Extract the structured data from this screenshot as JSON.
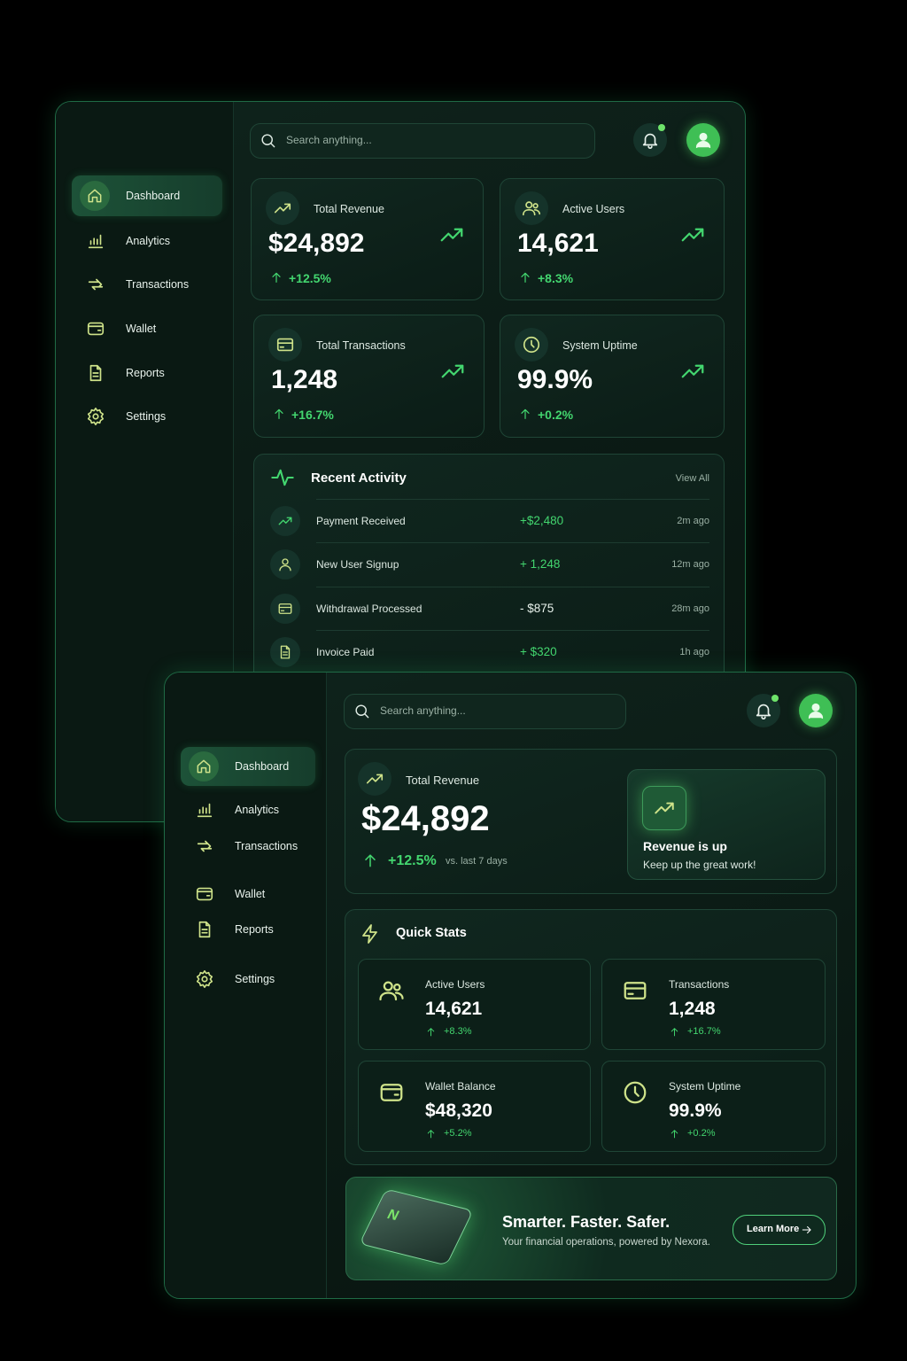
{
  "back": {
    "search": "Search anything...",
    "nav": [
      "Dashboard",
      "Analytics",
      "Transactions",
      "Wallet",
      "Reports",
      "Settings"
    ],
    "stats": [
      {
        "label": "Total Revenue",
        "value": "$24,892",
        "change": "+12.5%"
      },
      {
        "label": "Active Users",
        "value": "14,621",
        "change": "+8.3%"
      },
      {
        "label": "Total Transactions",
        "value": "1,248",
        "change": "+16.7%"
      },
      {
        "label": "System Uptime",
        "value": "99.9%",
        "change": "+0.2%"
      }
    ],
    "activity": {
      "title": "Recent Activity",
      "view_all": "View All",
      "rows": [
        {
          "label": "Payment Received",
          "amount": "+$2,480",
          "time": "2m ago"
        },
        {
          "label": "New User Signup",
          "amount": "+ 1,248",
          "time": "12m ago"
        },
        {
          "label": "Withdrawal Processed",
          "amount": "- $875",
          "time": "28m ago"
        },
        {
          "label": "Invoice Paid",
          "amount": "+ $320",
          "time": "1h ago"
        }
      ]
    }
  },
  "front": {
    "search": "Search anything...",
    "nav": [
      "Dashboard",
      "Analytics",
      "Transactions",
      "Wallet",
      "Reports",
      "Settings"
    ],
    "hero": {
      "label": "Total Revenue",
      "value": "$24,892",
      "change": "+12.5%",
      "period": "vs. last 7 days",
      "badge_title": "Revenue is up",
      "badge_text": "Keep up the great work!"
    },
    "quick_stats": {
      "title": "Quick Stats",
      "items": [
        {
          "label": "Active Users",
          "value": "14,621",
          "change": "+8.3%"
        },
        {
          "label": "Transactions",
          "value": "1,248",
          "change": "+16.7%"
        },
        {
          "label": "Wallet Balance",
          "value": "$48,320",
          "change": "+5.2%"
        },
        {
          "label": "System Uptime",
          "value": "99.9%",
          "change": "+0.2%"
        }
      ]
    },
    "promo": {
      "card_logo": "N",
      "title": "Smarter. Faster. Safer.",
      "text": "Your financial operations, powered by Nexora.",
      "button": "Learn More"
    }
  }
}
